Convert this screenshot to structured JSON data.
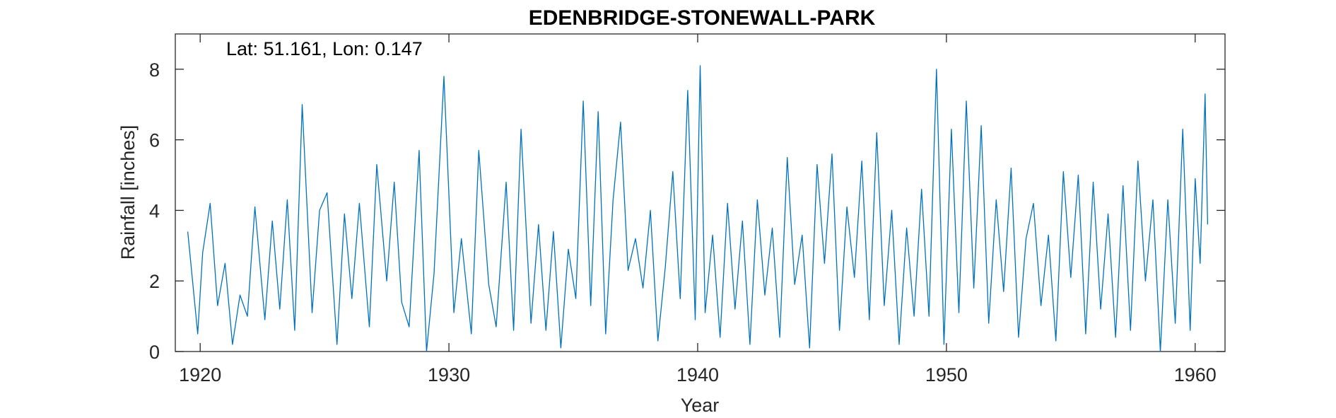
{
  "chart_data": {
    "type": "line",
    "title": "EDENBRIDGE-STONEWALL-PARK",
    "xlabel": "Year",
    "ylabel": "Rainfall [inches]",
    "annotation": "Lat: 51.161, Lon: 0.147",
    "xlim": [
      1919,
      1961.2
    ],
    "ylim": [
      0,
      9
    ],
    "xticks": [
      1920,
      1930,
      1940,
      1950,
      1960
    ],
    "yticks": [
      0,
      2,
      4,
      6,
      8
    ],
    "line_color": "#0072BD",
    "grid": false,
    "series": [
      {
        "x": [
          1919.5,
          1919.9,
          1920.1,
          1920.4,
          1920.7,
          1921.0,
          1921.3,
          1921.6,
          1921.9,
          1922.2,
          1922.6,
          1922.9,
          1923.2,
          1923.5,
          1923.8,
          1924.1,
          1924.5,
          1924.8,
          1925.1,
          1925.5,
          1925.8,
          1926.1,
          1926.4,
          1926.8,
          1927.1,
          1927.5,
          1927.8,
          1928.1,
          1928.4,
          1928.8,
          1929.1,
          1929.4,
          1929.8,
          1930.2,
          1930.5,
          1930.9,
          1931.2,
          1931.6,
          1931.9,
          1932.3,
          1932.6,
          1932.9,
          1933.3,
          1933.6,
          1933.9,
          1934.2,
          1934.5,
          1934.8,
          1935.1,
          1935.4,
          1935.7,
          1936.0,
          1936.3,
          1936.6,
          1936.9,
          1937.2,
          1937.5,
          1937.8,
          1938.1,
          1938.4,
          1938.7,
          1939.0,
          1939.3,
          1939.6,
          1939.9,
          1940.1,
          1940.3,
          1940.6,
          1940.9,
          1941.2,
          1941.5,
          1941.8,
          1942.1,
          1942.4,
          1942.7,
          1943.0,
          1943.3,
          1943.6,
          1943.9,
          1944.2,
          1944.5,
          1944.8,
          1945.1,
          1945.4,
          1945.7,
          1946.0,
          1946.3,
          1946.6,
          1946.9,
          1947.2,
          1947.5,
          1947.8,
          1948.1,
          1948.4,
          1948.7,
          1949.0,
          1949.3,
          1949.6,
          1949.9,
          1950.2,
          1950.5,
          1950.8,
          1951.1,
          1951.4,
          1951.7,
          1952.0,
          1952.3,
          1952.6,
          1952.9,
          1953.2,
          1953.5,
          1953.8,
          1954.1,
          1954.4,
          1954.7,
          1955.0,
          1955.3,
          1955.6,
          1955.9,
          1956.2,
          1956.5,
          1956.8,
          1957.1,
          1957.4,
          1957.7,
          1958.0,
          1958.3,
          1958.6,
          1958.9,
          1959.2,
          1959.5,
          1959.8,
          1960.0,
          1960.2,
          1960.4,
          1960.5
        ],
        "y": [
          3.4,
          0.5,
          2.8,
          4.2,
          1.3,
          2.5,
          0.2,
          1.6,
          1.0,
          4.1,
          0.9,
          3.7,
          1.2,
          4.3,
          0.6,
          7.0,
          1.1,
          4.0,
          4.5,
          0.2,
          3.9,
          1.5,
          4.2,
          0.7,
          5.3,
          2.0,
          4.8,
          1.4,
          0.7,
          5.7,
          0.0,
          2.2,
          7.8,
          1.1,
          3.2,
          0.5,
          5.7,
          1.9,
          0.7,
          4.8,
          0.6,
          6.3,
          0.8,
          3.6,
          0.6,
          3.4,
          0.1,
          2.9,
          1.5,
          7.1,
          1.3,
          6.8,
          0.5,
          4.3,
          6.5,
          2.3,
          3.2,
          1.8,
          4.0,
          0.3,
          2.4,
          5.1,
          1.5,
          7.4,
          0.9,
          8.1,
          1.1,
          3.3,
          0.4,
          4.2,
          1.2,
          3.7,
          0.2,
          4.3,
          1.6,
          3.5,
          0.4,
          5.5,
          1.9,
          3.3,
          0.1,
          5.3,
          2.5,
          5.6,
          0.6,
          4.1,
          2.1,
          5.4,
          0.9,
          6.2,
          1.3,
          4.0,
          0.2,
          3.5,
          1.0,
          4.6,
          1.0,
          8.0,
          0.2,
          6.3,
          1.1,
          7.1,
          1.8,
          6.4,
          0.8,
          4.3,
          1.7,
          5.2,
          0.4,
          3.2,
          4.2,
          1.3,
          3.3,
          0.3,
          5.1,
          2.1,
          5.0,
          0.5,
          4.8,
          1.2,
          3.9,
          0.4,
          4.7,
          0.6,
          5.4,
          2.0,
          4.3,
          0.0,
          4.3,
          0.8,
          6.3,
          0.6,
          4.9,
          2.5,
          7.3,
          3.6
        ]
      }
    ]
  }
}
